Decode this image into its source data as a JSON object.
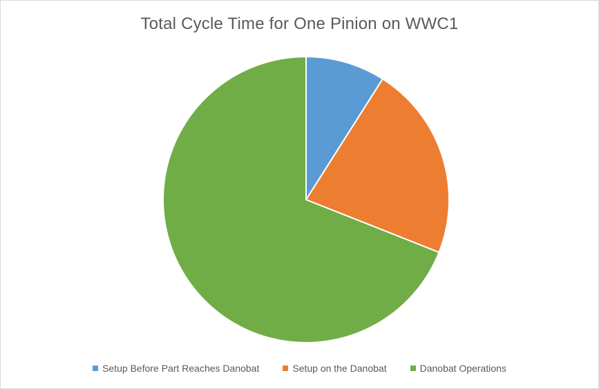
{
  "chart_data": {
    "type": "pie",
    "title": "Total Cycle Time for One Pinion on WWC1",
    "categories": [
      "Setup Before Part Reaches Danobat",
      "Setup on the Danobat",
      "Danobat Operations"
    ],
    "values": [
      9,
      22,
      69
    ],
    "colors": [
      "#5b9bd5",
      "#ed7d31",
      "#70ad47"
    ],
    "legend_position": "bottom"
  }
}
